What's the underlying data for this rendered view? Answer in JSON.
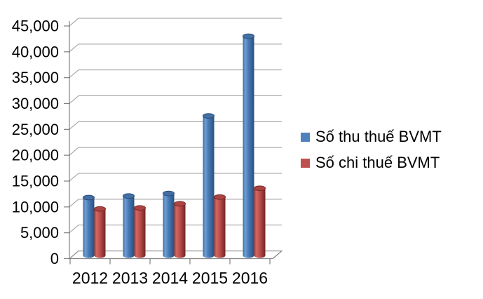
{
  "chart_data": {
    "type": "bar",
    "style": "3d-cylinder",
    "title": "",
    "xlabel": "",
    "ylabel": "",
    "categories": [
      "2012",
      "2013",
      "2014",
      "2015",
      "2016"
    ],
    "series": [
      {
        "name": "Số thu thuế BVMT",
        "color": "#4F81BD",
        "values": [
          11200,
          11500,
          12000,
          27000,
          42400
        ]
      },
      {
        "name": "Số chi thuế BVMT",
        "color": "#C0504D",
        "values": [
          9000,
          9200,
          10000,
          11300,
          13000
        ]
      }
    ],
    "ylim": [
      0,
      45000
    ],
    "ytick_step": 5000,
    "ytick_labels": [
      "0",
      "5,000",
      "10,000",
      "15,000",
      "20,000",
      "25,000",
      "30,000",
      "35,000",
      "40,000",
      "45,000"
    ],
    "grid": true,
    "legend_position": "right"
  },
  "colors": {
    "background": "#FFFFFF",
    "text": "#000000",
    "gridline": "#9A9A9A",
    "axis": "#808080",
    "blue_edge_dark": "#27507E",
    "blue_left": "#3A6898",
    "blue_highlight": "#6E9FD6",
    "blue_mid": "#4A7CB8",
    "blue_top": "#446FA4",
    "blue_top_rim": "#2A4E78",
    "red_edge_dark": "#702626",
    "red_left": "#9E3E3B",
    "red_highlight": "#D4665F",
    "red_mid": "#C0504D",
    "red_top": "#AB4442",
    "red_top_rim": "#7A2B29"
  }
}
